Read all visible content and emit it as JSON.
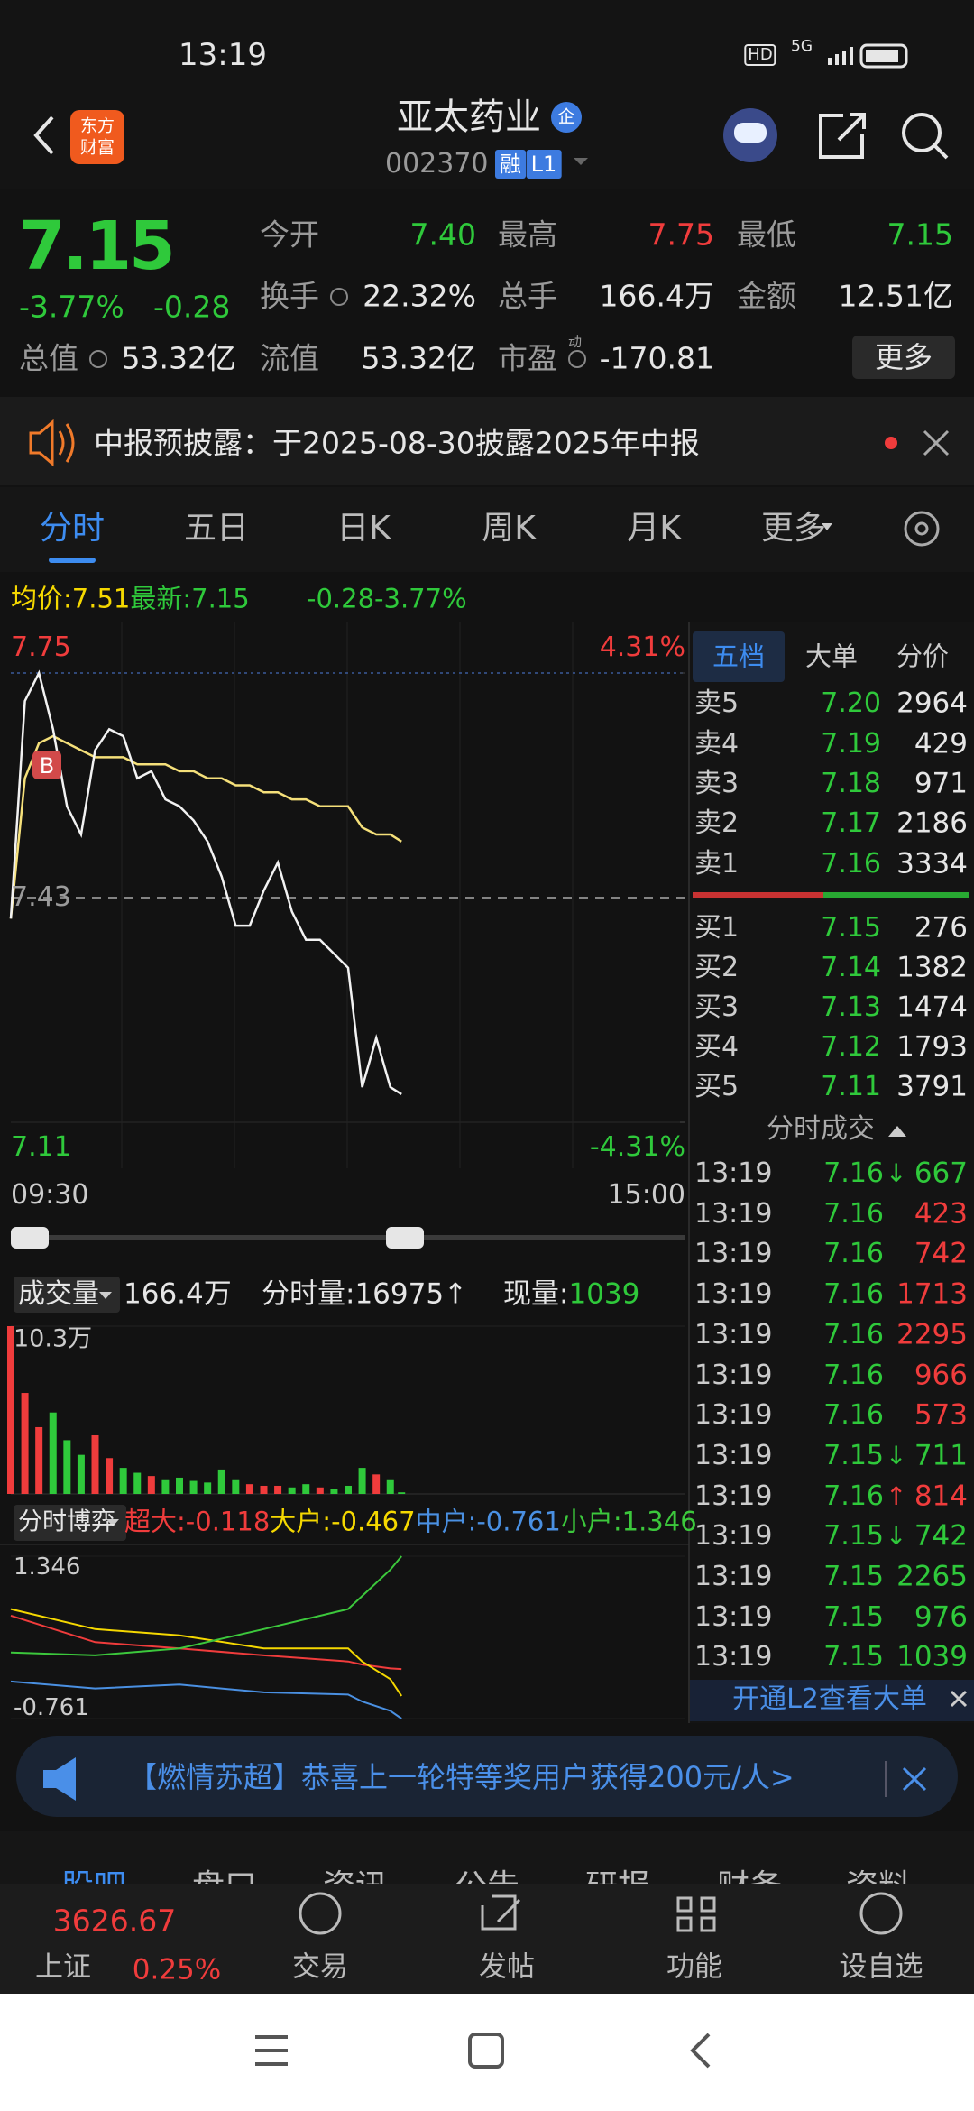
{
  "status": {
    "time": "13:19",
    "hd": "HD",
    "network": "5G"
  },
  "header": {
    "logo": [
      "东方",
      "财富"
    ],
    "title": "亚太药业",
    "badge": "企",
    "code": "002370",
    "tags": [
      "融",
      "L1"
    ]
  },
  "quote": {
    "price": 7.15,
    "change_pct": "-3.77%",
    "change": -0.28,
    "fields": [
      {
        "label": "今开",
        "value": "7.40",
        "color": "#2fc93b"
      },
      {
        "label": "最高",
        "value": "7.75",
        "color": "#f03c3c"
      },
      {
        "label": "最低",
        "value": "7.15",
        "color": "#2fc93b"
      },
      {
        "label": "换手",
        "value": "22.32%",
        "color": "#e6e6e6"
      },
      {
        "label": "总手",
        "value": "166.4万",
        "color": "#e6e6e6"
      },
      {
        "label": "金额",
        "value": "12.51亿",
        "color": "#e6e6e6"
      },
      {
        "label": "总值",
        "value": "53.32亿",
        "color": "#e6e6e6"
      },
      {
        "label": "流值",
        "value": "53.32亿",
        "color": "#e6e6e6"
      },
      {
        "label": "市盈",
        "sup": "动",
        "value": "-170.81",
        "color": "#e6e6e6"
      }
    ],
    "more": "更多"
  },
  "notice": {
    "text": "中报预披露：于2025-08-30披露2025年中报"
  },
  "tabs": {
    "items": [
      "分时",
      "五日",
      "日K",
      "周K",
      "月K",
      "更多"
    ],
    "active": 0
  },
  "avg_row": {
    "avg_label": "均价:",
    "avg": 7.51,
    "latest_label": "最新:",
    "latest": 7.15,
    "change": -0.28,
    "change_pct": "-3.77%"
  },
  "chart_data": [
    {
      "type": "line",
      "annotation": "B",
      "x": [
        "09:30",
        "09:35",
        "09:40",
        "09:45",
        "09:50",
        "09:55",
        "10:00",
        "10:05",
        "10:10",
        "10:15",
        "10:20",
        "10:25",
        "10:30",
        "10:35",
        "10:40",
        "10:45",
        "10:50",
        "10:55",
        "11:00",
        "11:05",
        "11:10",
        "11:15",
        "11:20",
        "11:25",
        "11:30",
        "13:05",
        "13:10",
        "13:15",
        "13:19"
      ],
      "series": [
        {
          "color": "#f2f2f2",
          "values": [
            7.4,
            7.71,
            7.75,
            7.67,
            7.56,
            7.52,
            7.64,
            7.67,
            7.66,
            7.6,
            7.61,
            7.57,
            7.56,
            7.54,
            7.51,
            7.46,
            7.39,
            7.39,
            7.44,
            7.48,
            7.41,
            7.37,
            7.37,
            7.35,
            7.33,
            7.16,
            7.23,
            7.16,
            7.15
          ]
        },
        {
          "color": "#f5e07a",
          "values": [
            7.4,
            7.6,
            7.65,
            7.66,
            7.65,
            7.64,
            7.63,
            7.63,
            7.63,
            7.62,
            7.62,
            7.62,
            7.61,
            7.61,
            7.6,
            7.6,
            7.59,
            7.59,
            7.58,
            7.58,
            7.57,
            7.57,
            7.56,
            7.56,
            7.56,
            7.53,
            7.52,
            7.52,
            7.51
          ]
        }
      ],
      "xlim": [
        "09:30",
        "15:00"
      ],
      "xticks": [
        "09:30",
        "15:00"
      ],
      "ylim": [
        7.11,
        7.75
      ],
      "yticks": [
        7.75,
        7.43,
        7.11
      ],
      "y2lim": [
        -4.31,
        4.31
      ],
      "y2ticks": [
        {
          "value": 4.31,
          "label": "4.31%"
        },
        {
          "value": -4.31,
          "label": "-4.31%"
        }
      ]
    },
    {
      "type": "bar",
      "x": [
        "09:30",
        "09:35",
        "09:40",
        "09:45",
        "09:50",
        "09:55",
        "10:00",
        "10:05",
        "10:10",
        "10:15",
        "10:20",
        "10:25",
        "10:30",
        "10:35",
        "10:40",
        "10:45",
        "10:50",
        "10:55",
        "11:00",
        "11:05",
        "11:10",
        "11:15",
        "11:20",
        "11:25",
        "11:30",
        "13:05",
        "13:10",
        "13:15",
        "13:19"
      ],
      "values": [
        10.3,
        6.2,
        4.1,
        5.0,
        3.3,
        2.4,
        3.6,
        2.2,
        1.6,
        1.3,
        1.1,
        0.9,
        1.0,
        0.8,
        0.7,
        1.5,
        0.9,
        0.6,
        0.5,
        0.5,
        0.4,
        0.6,
        0.4,
        0.3,
        0.5,
        1.6,
        1.2,
        0.9,
        0.1
      ],
      "up_color": "#f03c3c",
      "down_color": "#2fc93b",
      "xlim": [
        "09:30",
        "15:00"
      ],
      "ylim": [
        0,
        10.3
      ],
      "yticks": [
        {
          "value": 10.3,
          "label": "10.3万"
        }
      ],
      "header": {
        "selector": "成交量",
        "total": "166.4万",
        "minute_label": "分时量:",
        "minute": 16975,
        "minute_arrow": "↑",
        "current_label": "现量:",
        "current": 1039
      }
    },
    {
      "type": "line",
      "x": [
        "09:30",
        "10:00",
        "10:30",
        "11:00",
        "11:30",
        "13:05",
        "13:15",
        "13:19"
      ],
      "series": [
        {
          "name": "超大:",
          "color": "#f03c3c",
          "values": [
            0.575,
            0.23,
            0.15,
            0.06,
            -0.02,
            -0.06,
            -0.11,
            -0.118
          ]
        },
        {
          "name": "大户:",
          "color": "#f5d800",
          "values": [
            0.66,
            0.4,
            0.32,
            0.15,
            0.15,
            -0.02,
            -0.25,
            -0.467
          ]
        },
        {
          "name": "中户:",
          "color": "#4a90e2",
          "values": [
            -0.28,
            -0.37,
            -0.32,
            -0.42,
            -0.45,
            -0.54,
            -0.66,
            -0.761
          ]
        },
        {
          "name": "小户:",
          "color": "#3cc83c",
          "values": [
            0.096,
            0.06,
            0.15,
            0.4,
            0.66,
            0.83,
            1.17,
            1.346
          ]
        }
      ],
      "xlim": [
        "09:30",
        "15:00"
      ],
      "ylim": [
        -0.761,
        1.346
      ],
      "yticks": [
        1.346,
        -0.761
      ],
      "header": {
        "selector": "分时博弈"
      }
    }
  ],
  "order_book": {
    "tabs": [
      "五档",
      "大单",
      "分价"
    ],
    "sells": [
      {
        "label": "卖5",
        "price": "7.20",
        "volume": "2964"
      },
      {
        "label": "卖4",
        "price": "7.19",
        "volume": "429"
      },
      {
        "label": "卖3",
        "price": "7.18",
        "volume": "971"
      },
      {
        "label": "卖2",
        "price": "7.17",
        "volume": "2186"
      },
      {
        "label": "卖1",
        "price": "7.16",
        "volume": "3334"
      }
    ],
    "buys": [
      {
        "label": "买1",
        "price": "7.15",
        "volume": "276"
      },
      {
        "label": "买2",
        "price": "7.14",
        "volume": "1382"
      },
      {
        "label": "买3",
        "price": "7.13",
        "volume": "1474"
      },
      {
        "label": "买4",
        "price": "7.12",
        "volume": "1793"
      },
      {
        "label": "买5",
        "price": "7.11",
        "volume": "3791"
      }
    ]
  },
  "trades": {
    "title": "分时成交",
    "rows": [
      {
        "time": "13:19",
        "price": "7.16",
        "arrow": "↓",
        "volume": "667",
        "color": "#2fc93b"
      },
      {
        "time": "13:19",
        "price": "7.16",
        "volume": "423",
        "color": "#f03c3c"
      },
      {
        "time": "13:19",
        "price": "7.16",
        "volume": "742",
        "color": "#f03c3c"
      },
      {
        "time": "13:19",
        "price": "7.16",
        "volume": "1713",
        "color": "#f03c3c"
      },
      {
        "time": "13:19",
        "price": "7.16",
        "volume": "2295",
        "color": "#f03c3c"
      },
      {
        "time": "13:19",
        "price": "7.16",
        "volume": "966",
        "color": "#f03c3c"
      },
      {
        "time": "13:19",
        "price": "7.16",
        "volume": "573",
        "color": "#f03c3c"
      },
      {
        "time": "13:19",
        "price": "7.15",
        "arrow": "↓",
        "volume": "711",
        "color": "#2fc93b"
      },
      {
        "time": "13:19",
        "price": "7.16",
        "arrow": "↑",
        "volume": "814",
        "color": "#f03c3c"
      },
      {
        "time": "13:19",
        "price": "7.15",
        "arrow": "↓",
        "volume": "742",
        "color": "#2fc93b"
      },
      {
        "time": "13:19",
        "price": "7.15",
        "volume": "2265",
        "color": "#2fc93b"
      },
      {
        "time": "13:19",
        "price": "7.15",
        "volume": "976",
        "color": "#2fc93b"
      },
      {
        "time": "13:19",
        "price": "7.15",
        "volume": "1039",
        "color": "#2fc93b"
      }
    ],
    "l2": "开通L2查看大单"
  },
  "banner": {
    "text": "【燃情苏超】恭喜上一轮特等奖用户获得200元/人>"
  },
  "sub_tabs": [
    "股吧",
    "盘口",
    "资讯",
    "公告",
    "研报",
    "财务",
    "资料"
  ],
  "bottom_nav": {
    "index_value": "3626.67",
    "index_name": "上证",
    "index_change": "0.25%",
    "items": [
      "交易",
      "发帖",
      "功能",
      "设自选"
    ]
  }
}
